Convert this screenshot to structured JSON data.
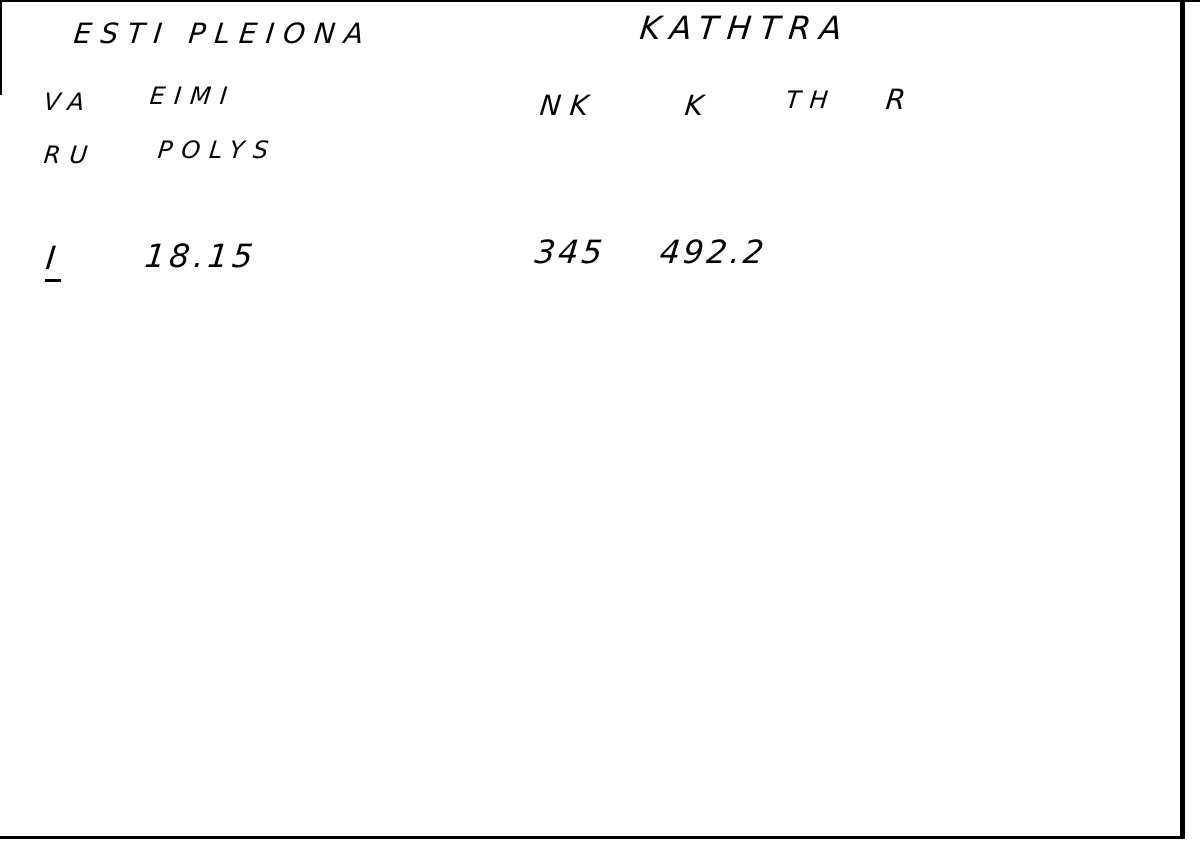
{
  "card": {
    "header_left": "ESTI PLEIONA",
    "header_right": "KATHTRA",
    "row1_left_a": "VA",
    "row1_left_b": "EIMI",
    "row2_left_a": "RU",
    "row2_left_b": "POLYS",
    "columns": [
      "NK",
      "K",
      "TH",
      "R"
    ],
    "index_label": "I",
    "index_value": "18.15",
    "value_1": "345",
    "value_2": "492.2"
  }
}
